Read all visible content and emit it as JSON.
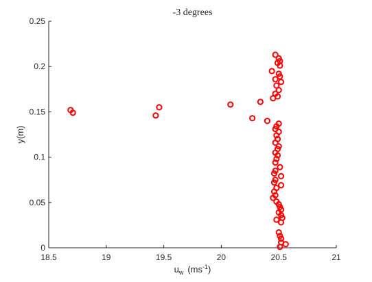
{
  "chart_data": {
    "type": "scatter",
    "title": "-3 degrees",
    "xlabel": "u",
    "xlabel_sub": "w",
    "xlabel_unit_prefix": "(ms",
    "xlabel_unit_sup": "-1",
    "xlabel_unit_suffix": ")",
    "ylabel": "y(m)",
    "xlim": [
      18.5,
      21
    ],
    "ylim": [
      0,
      0.25
    ],
    "xticks": [
      18.5,
      19,
      19.5,
      20,
      20.5,
      21
    ],
    "yticks": [
      0,
      0.05,
      0.1,
      0.15,
      0.2,
      0.25
    ],
    "xtick_labels": [
      "18.5",
      "19",
      "19.5",
      "20",
      "20.5",
      "21"
    ],
    "ytick_labels": [
      "0",
      "0.05",
      "0.1",
      "0.15",
      "0.2",
      "0.25"
    ],
    "grid": false,
    "marker": "open-circle",
    "marker_color": "#ff0000",
    "axis_color": "#262626",
    "points": [
      {
        "x": 18.69,
        "y": 0.152
      },
      {
        "x": 18.71,
        "y": 0.149
      },
      {
        "x": 19.46,
        "y": 0.155
      },
      {
        "x": 19.43,
        "y": 0.146
      },
      {
        "x": 20.08,
        "y": 0.158
      },
      {
        "x": 20.27,
        "y": 0.143
      },
      {
        "x": 20.34,
        "y": 0.161
      },
      {
        "x": 20.4,
        "y": 0.14
      },
      {
        "x": 20.47,
        "y": 0.213
      },
      {
        "x": 20.5,
        "y": 0.209
      },
      {
        "x": 20.51,
        "y": 0.206
      },
      {
        "x": 20.49,
        "y": 0.204
      },
      {
        "x": 20.51,
        "y": 0.201
      },
      {
        "x": 20.44,
        "y": 0.195
      },
      {
        "x": 20.5,
        "y": 0.192
      },
      {
        "x": 20.51,
        "y": 0.189
      },
      {
        "x": 20.47,
        "y": 0.186
      },
      {
        "x": 20.52,
        "y": 0.183
      },
      {
        "x": 20.48,
        "y": 0.179
      },
      {
        "x": 20.5,
        "y": 0.174
      },
      {
        "x": 20.47,
        "y": 0.17
      },
      {
        "x": 20.49,
        "y": 0.167
      },
      {
        "x": 20.45,
        "y": 0.165
      },
      {
        "x": 20.5,
        "y": 0.137
      },
      {
        "x": 20.48,
        "y": 0.134
      },
      {
        "x": 20.47,
        "y": 0.131
      },
      {
        "x": 20.5,
        "y": 0.128
      },
      {
        "x": 20.48,
        "y": 0.124
      },
      {
        "x": 20.49,
        "y": 0.12
      },
      {
        "x": 20.47,
        "y": 0.116
      },
      {
        "x": 20.5,
        "y": 0.112
      },
      {
        "x": 20.49,
        "y": 0.109
      },
      {
        "x": 20.47,
        "y": 0.105
      },
      {
        "x": 20.49,
        "y": 0.102
      },
      {
        "x": 20.48,
        "y": 0.098
      },
      {
        "x": 20.47,
        "y": 0.094
      },
      {
        "x": 20.51,
        "y": 0.089
      },
      {
        "x": 20.47,
        "y": 0.085
      },
      {
        "x": 20.46,
        "y": 0.082
      },
      {
        "x": 20.52,
        "y": 0.079
      },
      {
        "x": 20.47,
        "y": 0.075
      },
      {
        "x": 20.46,
        "y": 0.072
      },
      {
        "x": 20.52,
        "y": 0.069
      },
      {
        "x": 20.48,
        "y": 0.066
      },
      {
        "x": 20.46,
        "y": 0.062
      },
      {
        "x": 20.47,
        "y": 0.058
      },
      {
        "x": 20.45,
        "y": 0.055
      },
      {
        "x": 20.48,
        "y": 0.051
      },
      {
        "x": 20.5,
        "y": 0.048
      },
      {
        "x": 20.51,
        "y": 0.045
      },
      {
        "x": 20.52,
        "y": 0.042
      },
      {
        "x": 20.5,
        "y": 0.039
      },
      {
        "x": 20.52,
        "y": 0.036
      },
      {
        "x": 20.53,
        "y": 0.033
      },
      {
        "x": 20.48,
        "y": 0.031
      },
      {
        "x": 20.52,
        "y": 0.028
      },
      {
        "x": 20.5,
        "y": 0.017
      },
      {
        "x": 20.51,
        "y": 0.013
      },
      {
        "x": 20.52,
        "y": 0.01
      },
      {
        "x": 20.52,
        "y": 0.006
      },
      {
        "x": 20.56,
        "y": 0.004
      },
      {
        "x": 20.51,
        "y": 0.001
      }
    ]
  }
}
